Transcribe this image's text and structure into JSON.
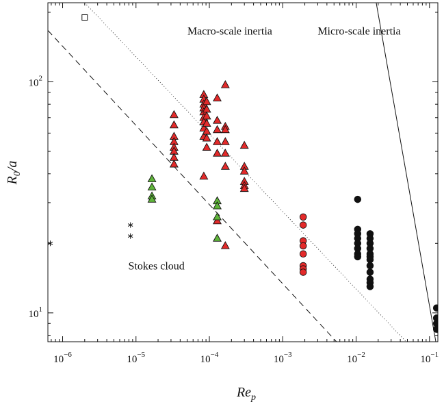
{
  "chart_data": {
    "type": "scatter",
    "x_scale": "log",
    "y_scale": "log",
    "xlim": [
      6.3e-07,
      0.13
    ],
    "ylim": [
      7.5,
      220
    ],
    "xlabel_main": "Re",
    "xlabel_sub": "p",
    "ylabel_main": "R",
    "ylabel_sub": "0",
    "ylabel_suffix": "/a",
    "x_ticks": [
      {
        "value": 1e-06,
        "base": "10",
        "exp": "−6"
      },
      {
        "value": 1e-05,
        "base": "10",
        "exp": "−5"
      },
      {
        "value": 0.0001,
        "base": "10",
        "exp": "−4"
      },
      {
        "value": 0.001,
        "base": "10",
        "exp": "−3"
      },
      {
        "value": 0.01,
        "base": "10",
        "exp": "−2"
      },
      {
        "value": 0.1,
        "base": "10",
        "exp": "−1"
      }
    ],
    "y_ticks": [
      {
        "value": 10,
        "base": "10",
        "exp": "1"
      },
      {
        "value": 100,
        "base": "10",
        "exp": "2"
      }
    ],
    "regions": [
      {
        "label": "Macro-scale inertia",
        "x": 0.00019,
        "y": 160
      },
      {
        "label": "Micro-scale inertia",
        "x": 0.011,
        "y": 160
      },
      {
        "label": "Stokes cloud",
        "x": 1.9e-05,
        "y": 15.4
      }
    ],
    "lines": [
      {
        "style": "dashed",
        "points": [
          [
            6.3e-07,
            167
          ],
          [
            0.0054,
            7.5
          ]
        ]
      },
      {
        "style": "dotted",
        "points": [
          [
            2e-06,
            220
          ],
          [
            0.048,
            7.5
          ]
        ]
      },
      {
        "style": "solid",
        "points": [
          [
            0.0188,
            220
          ],
          [
            0.122,
            7.5
          ]
        ]
      }
    ],
    "series": [
      {
        "marker": "triangle",
        "color": "#e32a2a",
        "points": [
          [
            3.3e-05,
            72
          ],
          [
            3.3e-05,
            65
          ],
          [
            3.3e-05,
            58
          ],
          [
            3.3e-05,
            55
          ],
          [
            3.3e-05,
            52
          ],
          [
            3.3e-05,
            50
          ],
          [
            3.3e-05,
            47
          ],
          [
            3.3e-05,
            44
          ],
          [
            8.4e-05,
            88
          ],
          [
            8.4e-05,
            84
          ],
          [
            8.4e-05,
            80
          ],
          [
            8.4e-05,
            77
          ],
          [
            8.4e-05,
            74
          ],
          [
            8.4e-05,
            70
          ],
          [
            8.4e-05,
            67
          ],
          [
            8.4e-05,
            63
          ],
          [
            8.4e-05,
            58
          ],
          [
            8.4e-05,
            39
          ],
          [
            9.2e-05,
            82
          ],
          [
            9.2e-05,
            76
          ],
          [
            9.2e-05,
            71
          ],
          [
            9.2e-05,
            66
          ],
          [
            9.2e-05,
            61
          ],
          [
            9.2e-05,
            57
          ],
          [
            9.2e-05,
            52
          ],
          [
            0.000128,
            85
          ],
          [
            0.000128,
            68
          ],
          [
            0.000128,
            62
          ],
          [
            0.000128,
            55
          ],
          [
            0.000128,
            49
          ],
          [
            0.000128,
            25
          ],
          [
            0.000165,
            97
          ],
          [
            0.000165,
            64
          ],
          [
            0.000165,
            62
          ],
          [
            0.000165,
            55
          ],
          [
            0.000165,
            49
          ],
          [
            0.000165,
            43
          ],
          [
            0.000165,
            19.5
          ],
          [
            0.0003,
            53
          ],
          [
            0.0003,
            43
          ],
          [
            0.0003,
            41
          ],
          [
            0.0003,
            37
          ],
          [
            0.0003,
            35.5
          ],
          [
            0.0003,
            34.5
          ]
        ]
      },
      {
        "marker": "triangle",
        "color": "#5fb43a",
        "points": [
          [
            1.65e-05,
            38
          ],
          [
            1.65e-05,
            35
          ],
          [
            1.65e-05,
            32
          ],
          [
            1.65e-05,
            31
          ],
          [
            0.000128,
            30.5
          ],
          [
            0.000128,
            29
          ],
          [
            0.000128,
            26
          ],
          [
            0.000128,
            21
          ]
        ]
      },
      {
        "marker": "circle",
        "color": "#e32a2a",
        "points": [
          [
            0.0019,
            26
          ],
          [
            0.0019,
            24
          ],
          [
            0.0019,
            20.5
          ],
          [
            0.0019,
            19.5
          ],
          [
            0.0019,
            18
          ],
          [
            0.0019,
            16
          ],
          [
            0.0019,
            15.5
          ],
          [
            0.0019,
            15
          ]
        ]
      },
      {
        "marker": "circle",
        "color": "#111111",
        "points": [
          [
            0.0105,
            31
          ],
          [
            0.0105,
            23
          ],
          [
            0.0105,
            22
          ],
          [
            0.0105,
            21
          ],
          [
            0.0105,
            20
          ],
          [
            0.0105,
            19
          ],
          [
            0.0105,
            18
          ],
          [
            0.0105,
            17.5
          ],
          [
            0.0155,
            22
          ],
          [
            0.0155,
            21
          ],
          [
            0.0155,
            20
          ],
          [
            0.0155,
            19
          ],
          [
            0.0155,
            18
          ],
          [
            0.0155,
            17.5
          ],
          [
            0.0155,
            17
          ],
          [
            0.0155,
            16
          ],
          [
            0.0155,
            15
          ],
          [
            0.0155,
            14
          ],
          [
            0.0155,
            13.5
          ],
          [
            0.0155,
            13
          ],
          [
            0.125,
            10.5
          ],
          [
            0.125,
            9.5
          ],
          [
            0.125,
            9
          ],
          [
            0.125,
            8.5
          ]
        ]
      },
      {
        "marker": "asterisk",
        "color": "#111111",
        "points": [
          [
            6.8e-07,
            20
          ],
          [
            8.4e-06,
            24
          ],
          [
            8.4e-06,
            21.5
          ]
        ]
      },
      {
        "marker": "square",
        "color": "#ffffff",
        "points": [
          [
            2e-06,
            190
          ]
        ]
      }
    ]
  }
}
